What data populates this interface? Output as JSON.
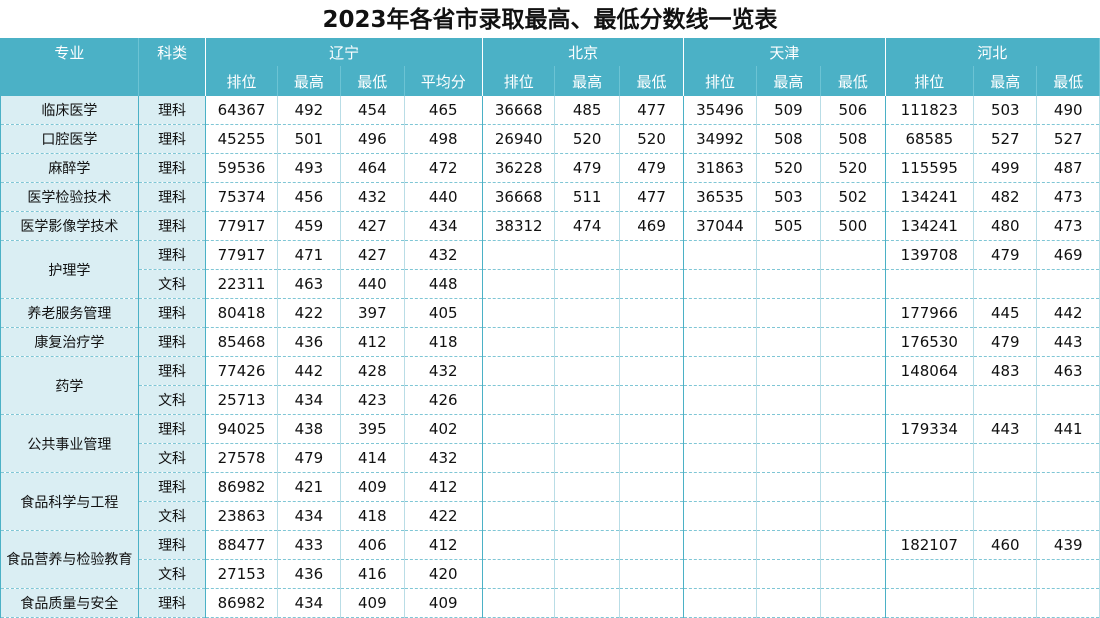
{
  "title": "2023年各省市录取最高、最低分数线一览表",
  "header": {
    "major": "专业",
    "category": "科类",
    "provinces": [
      "辽宁",
      "北京",
      "天津",
      "河北"
    ],
    "sub_liaoning": [
      "排位",
      "最高",
      "最低",
      "平均分"
    ],
    "sub_other": [
      "排位",
      "最高",
      "最低"
    ]
  },
  "rows": [
    {
      "major": "临床医学",
      "span": 1,
      "cat": "理科",
      "ln": [
        "64367",
        "492",
        "454",
        "465"
      ],
      "bj": [
        "36668",
        "485",
        "477"
      ],
      "tj": [
        "35496",
        "509",
        "506"
      ],
      "hb": [
        "111823",
        "503",
        "490"
      ]
    },
    {
      "major": "口腔医学",
      "span": 1,
      "cat": "理科",
      "ln": [
        "45255",
        "501",
        "496",
        "498"
      ],
      "bj": [
        "26940",
        "520",
        "520"
      ],
      "tj": [
        "34992",
        "508",
        "508"
      ],
      "hb": [
        "68585",
        "527",
        "527"
      ]
    },
    {
      "major": "麻醉学",
      "span": 1,
      "cat": "理科",
      "ln": [
        "59536",
        "493",
        "464",
        "472"
      ],
      "bj": [
        "36228",
        "479",
        "479"
      ],
      "tj": [
        "31863",
        "520",
        "520"
      ],
      "hb": [
        "115595",
        "499",
        "487"
      ]
    },
    {
      "major": "医学检验技术",
      "span": 1,
      "cat": "理科",
      "ln": [
        "75374",
        "456",
        "432",
        "440"
      ],
      "bj": [
        "36668",
        "511",
        "477"
      ],
      "tj": [
        "36535",
        "503",
        "502"
      ],
      "hb": [
        "134241",
        "482",
        "473"
      ]
    },
    {
      "major": "医学影像学技术",
      "span": 1,
      "cat": "理科",
      "ln": [
        "77917",
        "459",
        "427",
        "434"
      ],
      "bj": [
        "38312",
        "474",
        "469"
      ],
      "tj": [
        "37044",
        "505",
        "500"
      ],
      "hb": [
        "134241",
        "480",
        "473"
      ]
    },
    {
      "major": "护理学",
      "span": 2,
      "cat": "理科",
      "ln": [
        "77917",
        "471",
        "427",
        "432"
      ],
      "bj": [
        "",
        "",
        ""
      ],
      "tj": [
        "",
        "",
        ""
      ],
      "hb": [
        "139708",
        "479",
        "469"
      ]
    },
    {
      "major": null,
      "cat": "文科",
      "ln": [
        "22311",
        "463",
        "440",
        "448"
      ],
      "bj": [
        "",
        "",
        ""
      ],
      "tj": [
        "",
        "",
        ""
      ],
      "hb": [
        "",
        "",
        ""
      ]
    },
    {
      "major": "养老服务管理",
      "span": 1,
      "cat": "理科",
      "ln": [
        "80418",
        "422",
        "397",
        "405"
      ],
      "bj": [
        "",
        "",
        ""
      ],
      "tj": [
        "",
        "",
        ""
      ],
      "hb": [
        "177966",
        "445",
        "442"
      ]
    },
    {
      "major": "康复治疗学",
      "span": 1,
      "cat": "理科",
      "ln": [
        "85468",
        "436",
        "412",
        "418"
      ],
      "bj": [
        "",
        "",
        ""
      ],
      "tj": [
        "",
        "",
        ""
      ],
      "hb": [
        "176530",
        "479",
        "443"
      ]
    },
    {
      "major": "药学",
      "span": 2,
      "cat": "理科",
      "ln": [
        "77426",
        "442",
        "428",
        "432"
      ],
      "bj": [
        "",
        "",
        ""
      ],
      "tj": [
        "",
        "",
        ""
      ],
      "hb": [
        "148064",
        "483",
        "463"
      ]
    },
    {
      "major": null,
      "cat": "文科",
      "ln": [
        "25713",
        "434",
        "423",
        "426"
      ],
      "bj": [
        "",
        "",
        ""
      ],
      "tj": [
        "",
        "",
        ""
      ],
      "hb": [
        "",
        "",
        ""
      ]
    },
    {
      "major": "公共事业管理",
      "span": 2,
      "cat": "理科",
      "ln": [
        "94025",
        "438",
        "395",
        "402"
      ],
      "bj": [
        "",
        "",
        ""
      ],
      "tj": [
        "",
        "",
        ""
      ],
      "hb": [
        "179334",
        "443",
        "441"
      ]
    },
    {
      "major": null,
      "cat": "文科",
      "ln": [
        "27578",
        "479",
        "414",
        "432"
      ],
      "bj": [
        "",
        "",
        ""
      ],
      "tj": [
        "",
        "",
        ""
      ],
      "hb": [
        "",
        "",
        ""
      ]
    },
    {
      "major": "食品科学与工程",
      "span": 2,
      "cat": "理科",
      "ln": [
        "86982",
        "421",
        "409",
        "412"
      ],
      "bj": [
        "",
        "",
        ""
      ],
      "tj": [
        "",
        "",
        ""
      ],
      "hb": [
        "",
        "",
        ""
      ]
    },
    {
      "major": null,
      "cat": "文科",
      "ln": [
        "23863",
        "434",
        "418",
        "422"
      ],
      "bj": [
        "",
        "",
        ""
      ],
      "tj": [
        "",
        "",
        ""
      ],
      "hb": [
        "",
        "",
        ""
      ]
    },
    {
      "major": "食品营养与检验教育",
      "span": 2,
      "cat": "理科",
      "ln": [
        "88477",
        "433",
        "406",
        "412"
      ],
      "bj": [
        "",
        "",
        ""
      ],
      "tj": [
        "",
        "",
        ""
      ],
      "hb": [
        "182107",
        "460",
        "439"
      ]
    },
    {
      "major": null,
      "cat": "文科",
      "ln": [
        "27153",
        "436",
        "416",
        "420"
      ],
      "bj": [
        "",
        "",
        ""
      ],
      "tj": [
        "",
        "",
        ""
      ],
      "hb": [
        "",
        "",
        ""
      ]
    },
    {
      "major": "食品质量与安全",
      "span": 1,
      "cat": "理科",
      "ln": [
        "86982",
        "434",
        "409",
        "409"
      ],
      "bj": [
        "",
        "",
        ""
      ],
      "tj": [
        "",
        "",
        ""
      ],
      "hb": [
        "",
        "",
        ""
      ]
    }
  ]
}
